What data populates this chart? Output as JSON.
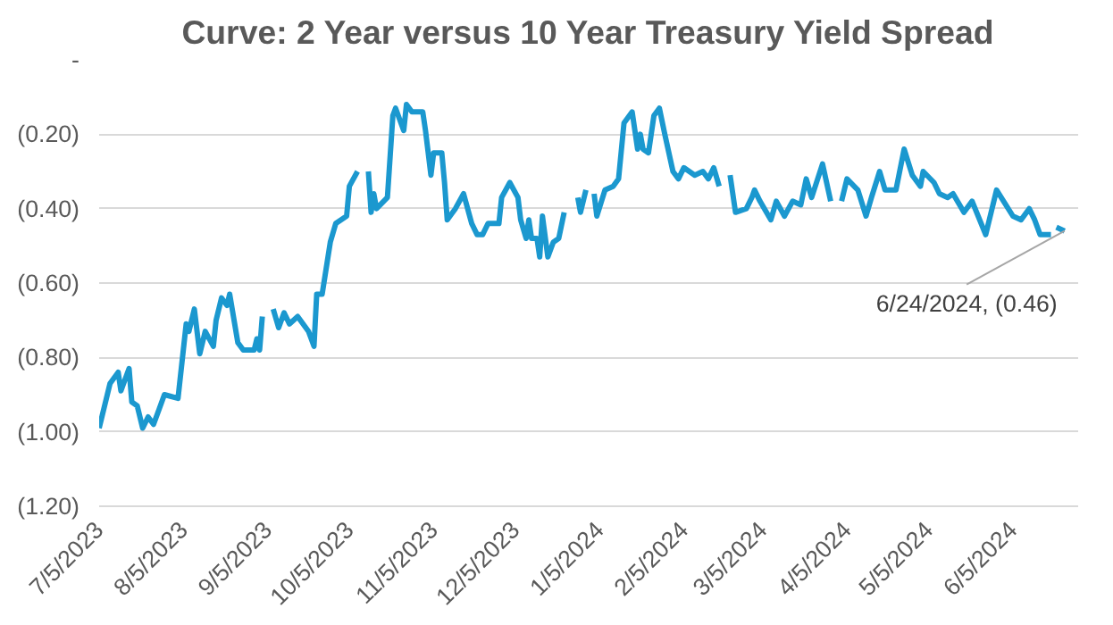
{
  "chart_data": {
    "type": "line",
    "title": "Curve: 2 Year versus 10 Year Treasury Yield Spread",
    "x": [
      "2023-07-05",
      "2023-07-09",
      "2023-07-12",
      "2023-07-13",
      "2023-07-16",
      "2023-07-17",
      "2023-07-19",
      "2023-07-21",
      "2023-07-23",
      "2023-07-25",
      "2023-07-27",
      "2023-07-29",
      "2023-08-03",
      "2023-08-06",
      "2023-08-07",
      "2023-08-09",
      "2023-08-11",
      "2023-08-13",
      "2023-08-16",
      "2023-08-17",
      "2023-08-19",
      "2023-08-21",
      "2023-08-22",
      "2023-08-25",
      "2023-08-27",
      "2023-08-31",
      "2023-09-01",
      "2023-09-02",
      "2023-09-03",
      "2023-09-04",
      "2023-09-07",
      "2023-09-09",
      "2023-09-11",
      "2023-09-13",
      "2023-09-16",
      "2023-09-20",
      "2023-09-22",
      "2023-09-23",
      "2023-09-25",
      "2023-09-28",
      "2023-09-30",
      "2023-10-04",
      "2023-10-05",
      "2023-10-08",
      "2023-10-10",
      "2023-10-12",
      "2023-10-13",
      "2023-10-14",
      "2023-10-15",
      "2023-10-19",
      "2023-10-21",
      "2023-10-22",
      "2023-10-25",
      "2023-10-26",
      "2023-10-28",
      "2023-11-01",
      "2023-11-02",
      "2023-11-04",
      "2023-11-05",
      "2023-11-08",
      "2023-11-09",
      "2023-11-10",
      "2023-11-13",
      "2023-11-16",
      "2023-11-19",
      "2023-11-21",
      "2023-11-23",
      "2023-11-25",
      "2023-11-29",
      "2023-11-30",
      "2023-12-03",
      "2023-12-06",
      "2023-12-07",
      "2023-12-09",
      "2023-12-10",
      "2023-12-11",
      "2023-12-13",
      "2023-12-14",
      "2023-12-15",
      "2023-12-17",
      "2023-12-19",
      "2023-12-21",
      "2023-12-23",
      "2023-12-25",
      "2023-12-28",
      "2023-12-29",
      "2023-12-31",
      "2024-01-02",
      "2024-01-03",
      "2024-01-04",
      "2024-01-07",
      "2024-01-10",
      "2024-01-12",
      "2024-01-14",
      "2024-01-17",
      "2024-01-19",
      "2024-01-20",
      "2024-01-21",
      "2024-01-23",
      "2024-01-25",
      "2024-01-27",
      "2024-01-29",
      "2024-02-01",
      "2024-02-03",
      "2024-02-05",
      "2024-02-09",
      "2024-02-12",
      "2024-02-14",
      "2024-02-16",
      "2024-02-18",
      "2024-02-19",
      "2024-02-22",
      "2024-02-24",
      "2024-02-28",
      "2024-03-01",
      "2024-03-02",
      "2024-03-04",
      "2024-03-08",
      "2024-03-10",
      "2024-03-13",
      "2024-03-16",
      "2024-03-19",
      "2024-03-21",
      "2024-03-23",
      "2024-03-27",
      "2024-03-30",
      "2024-03-31",
      "2024-04-03",
      "2024-04-05",
      "2024-04-09",
      "2024-04-12",
      "2024-04-14",
      "2024-04-17",
      "2024-04-19",
      "2024-04-23",
      "2024-04-26",
      "2024-04-29",
      "2024-05-02",
      "2024-05-03",
      "2024-05-07",
      "2024-05-09",
      "2024-05-12",
      "2024-05-14",
      "2024-05-18",
      "2024-05-21",
      "2024-05-26",
      "2024-05-30",
      "2024-06-05",
      "2024-06-08",
      "2024-06-11",
      "2024-06-13",
      "2024-06-15",
      "2024-06-19",
      "2024-06-20",
      "2024-06-21",
      "2024-06-24"
    ],
    "series": [
      {
        "color": "#1b98cf",
        "values": [
          -0.99,
          -0.87,
          -0.84,
          -0.89,
          -0.83,
          -0.92,
          -0.93,
          -0.99,
          -0.96,
          -0.98,
          -0.94,
          -0.9,
          -0.91,
          -0.71,
          -0.73,
          -0.67,
          -0.79,
          -0.73,
          -0.77,
          -0.7,
          -0.64,
          -0.66,
          -0.63,
          -0.76,
          -0.78,
          -0.78,
          -0.75,
          -0.78,
          -0.69,
          null,
          -0.67,
          -0.72,
          -0.68,
          -0.71,
          -0.69,
          -0.73,
          -0.77,
          -0.63,
          -0.63,
          -0.49,
          -0.44,
          -0.42,
          -0.34,
          -0.3,
          null,
          -0.3,
          -0.41,
          -0.36,
          -0.4,
          -0.37,
          -0.15,
          -0.13,
          -0.19,
          -0.12,
          -0.14,
          -0.14,
          -0.19,
          -0.31,
          -0.25,
          -0.25,
          -0.33,
          -0.43,
          -0.4,
          -0.36,
          -0.44,
          -0.47,
          -0.47,
          -0.44,
          -0.44,
          -0.37,
          -0.33,
          -0.37,
          -0.43,
          -0.48,
          -0.43,
          -0.48,
          -0.48,
          -0.53,
          -0.42,
          -0.53,
          -0.49,
          -0.48,
          -0.41,
          null,
          -0.37,
          -0.41,
          -0.35,
          null,
          -0.36,
          -0.42,
          -0.35,
          -0.34,
          -0.32,
          -0.17,
          -0.14,
          -0.24,
          -0.2,
          -0.24,
          -0.25,
          -0.15,
          -0.13,
          -0.2,
          -0.3,
          -0.32,
          -0.29,
          -0.31,
          -0.3,
          -0.32,
          -0.29,
          -0.34,
          null,
          -0.31,
          -0.41,
          -0.4,
          -0.37,
          -0.35,
          -0.38,
          -0.43,
          -0.38,
          -0.42,
          -0.38,
          -0.39,
          -0.32,
          -0.37,
          -0.28,
          -0.38,
          null,
          -0.38,
          -0.32,
          -0.35,
          -0.42,
          -0.37,
          -0.3,
          -0.35,
          -0.35,
          -0.24,
          -0.31,
          -0.34,
          -0.3,
          -0.33,
          -0.36,
          -0.37,
          -0.36,
          -0.41,
          -0.38,
          -0.47,
          -0.35,
          -0.42,
          -0.43,
          -0.4,
          -0.43,
          -0.47,
          -0.47,
          null,
          -0.45,
          -0.46
        ]
      }
    ],
    "xlim": [
      "2023-07-05",
      "2024-06-29"
    ],
    "xticks": [
      {
        "value": "2023-07-05",
        "label": "7/5/2023"
      },
      {
        "value": "2023-08-05",
        "label": "8/5/2023"
      },
      {
        "value": "2023-09-05",
        "label": "9/5/2023"
      },
      {
        "value": "2023-10-05",
        "label": "10/5/2023"
      },
      {
        "value": "2023-11-05",
        "label": "11/5/2023"
      },
      {
        "value": "2023-12-05",
        "label": "12/5/2023"
      },
      {
        "value": "2024-01-05",
        "label": "1/5/2024"
      },
      {
        "value": "2024-02-05",
        "label": "2/5/2024"
      },
      {
        "value": "2024-03-05",
        "label": "3/5/2024"
      },
      {
        "value": "2024-04-05",
        "label": "4/5/2024"
      },
      {
        "value": "2024-05-05",
        "label": "5/5/2024"
      },
      {
        "value": "2024-06-05",
        "label": "6/5/2024"
      }
    ],
    "ylim": [
      -1.2,
      0
    ],
    "yticks": [
      {
        "value": 0,
        "label": "-"
      },
      {
        "value": -0.2,
        "label": "(0.20)"
      },
      {
        "value": -0.4,
        "label": "(0.40)"
      },
      {
        "value": -0.6,
        "label": "(0.60)"
      },
      {
        "value": -0.8,
        "label": "(0.80)"
      },
      {
        "value": -1.0,
        "label": "(1.00)"
      },
      {
        "value": -1.2,
        "label": "(1.20)"
      }
    ],
    "grid": "y",
    "annotations": [
      {
        "text": "6/24/2024, (0.46)",
        "x": "2024-06-24",
        "y": -0.46
      }
    ]
  }
}
